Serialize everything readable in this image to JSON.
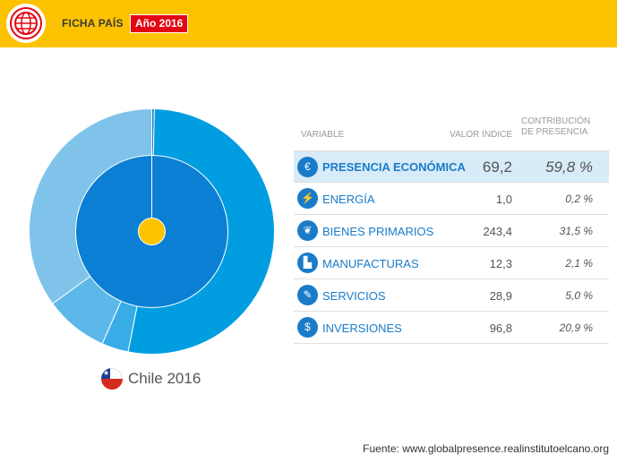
{
  "header": {
    "title": "FICHA PAÍS",
    "year_badge": "Año 2016"
  },
  "country": {
    "name": "Chile 2016"
  },
  "table": {
    "headers": {
      "variable": "VARIABLE",
      "valor": "VALOR ÍNDICE",
      "contribucion_line1": "CONTRIBUCIÓN",
      "contribucion_line2": "DE PRESENCIA"
    },
    "rows": [
      {
        "icon": "euro-icon",
        "glyph": "€",
        "name": "PRESENCIA ECONÓMICA",
        "value": "69,2",
        "contribution": "59,8 %"
      },
      {
        "icon": "energy-tower-icon",
        "glyph": "⚡",
        "name": "ENERGÍA",
        "value": "1,0",
        "contribution": "0,2 %"
      },
      {
        "icon": "wheat-icon",
        "glyph": "❦",
        "name": "BIENES PRIMARIOS",
        "value": "243,4",
        "contribution": "31,5 %"
      },
      {
        "icon": "factory-icon",
        "glyph": "▙",
        "name": "MANUFACTURAS",
        "value": "12,3",
        "contribution": "2,1 %"
      },
      {
        "icon": "services-icon",
        "glyph": "✎",
        "name": "SERVICIOS",
        "value": "28,9",
        "contribution": "5,0 %"
      },
      {
        "icon": "investment-icon",
        "glyph": "$",
        "name": "INVERSIONES",
        "value": "96,8",
        "contribution": "20,9 %"
      }
    ]
  },
  "source": "Fuente: www.globalpresence.realinstitutoelcano.org",
  "chart_data": {
    "type": "pie",
    "inner_ring": {
      "name": "PRESENCIA ECONÓMICA",
      "value": 59.8
    },
    "outer_ring": [
      {
        "name": "ENERGÍA",
        "value": 0.2,
        "color": "#1a7cc9"
      },
      {
        "name": "BIENES PRIMARIOS",
        "value": 31.5,
        "color": "#009ee0"
      },
      {
        "name": "MANUFACTURAS",
        "value": 2.1,
        "color": "#38ace6"
      },
      {
        "name": "SERVICIOS",
        "value": 5.0,
        "color": "#5cb8e8"
      },
      {
        "name": "INVERSIONES",
        "value": 20.9,
        "color": "#7fc3ea"
      }
    ],
    "colors": {
      "inner": "#0b7fd4",
      "center": "#fdc300"
    }
  }
}
